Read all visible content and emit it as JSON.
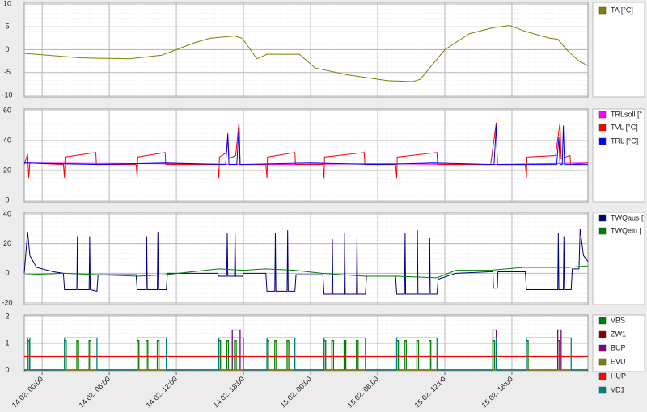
{
  "chart_data": [
    {
      "type": "line",
      "xlim": [
        -1.6,
        48.8
      ],
      "ylim": [
        -10,
        10
      ],
      "yticks": [
        -10,
        -5,
        0,
        5,
        10
      ],
      "grid": true,
      "series": [
        {
          "name": "TA [°C]",
          "color": "#808000",
          "x": [
            -1.6,
            3.5,
            7.8,
            10.7,
            13.6,
            15.0,
            17.2,
            17.9,
            19.2,
            20.1,
            23.0,
            24.4,
            27.3,
            30.9,
            33.1,
            33.8,
            36.0,
            38.2,
            40.3,
            41.8,
            43.2,
            45.4,
            46.1,
            46.9,
            48.0,
            48.8
          ],
          "values": [
            -0.8,
            -1.8,
            -2,
            -1.2,
            1.5,
            2.5,
            3,
            2.5,
            -2,
            -1,
            -1,
            -4,
            -5.5,
            -6.8,
            -7,
            -6.5,
            0,
            3.5,
            4.8,
            5.3,
            4,
            2.5,
            2.3,
            0,
            -2.5,
            -3.5
          ]
        }
      ]
    },
    {
      "type": "line",
      "xlim": [
        -1.6,
        48.8
      ],
      "ylim": [
        0,
        60
      ],
      "yticks": [
        0,
        20,
        40,
        60
      ],
      "grid": true,
      "series": [
        {
          "name": "TRLsoll [°",
          "color": "#ff00ff",
          "x": [
            -1.6,
            10,
            20,
            30,
            40,
            48.8
          ],
          "values": [
            25,
            24.5,
            24,
            24.5,
            24,
            25
          ]
        },
        {
          "name": "TVL [°C]",
          "color": "#ff0000",
          "x": [
            -1.6,
            -1.3,
            -1.2,
            -1.1,
            1.9,
            2.0,
            2.05,
            4.8,
            4.85,
            8.4,
            8.5,
            8.55,
            11.0,
            11.05,
            15.7,
            15.8,
            15.85,
            16.5,
            16.6,
            16.7,
            17.3,
            17.6,
            17.7,
            20.0,
            20.1,
            20.15,
            22.6,
            22.65,
            25.1,
            25.2,
            25.25,
            28.8,
            28.85,
            31.6,
            31.7,
            31.75,
            35.3,
            35.35,
            40.1,
            40.6,
            40.7,
            43.2,
            43.3,
            43.35,
            45.9,
            46.3,
            46.4,
            47.2,
            47.25,
            48.8
          ],
          "values": [
            24,
            31,
            15,
            25,
            24,
            15,
            29,
            32,
            24,
            24,
            15,
            29,
            32,
            24,
            24,
            15,
            29,
            32,
            45,
            28,
            30,
            52,
            24,
            24,
            15,
            29,
            32,
            24,
            24,
            15,
            29,
            32,
            24,
            24,
            15,
            29,
            32,
            24,
            24,
            52,
            24,
            24,
            15,
            29,
            30,
            52,
            28,
            30,
            24,
            25
          ]
        },
        {
          "name": "TRL [°C]",
          "color": "#0000ff",
          "x": [
            -1.6,
            5,
            11,
            16.4,
            16.6,
            16.7,
            17.4,
            17.6,
            17.7,
            24,
            30,
            35,
            40.4,
            40.6,
            40.7,
            46.0,
            46.2,
            46.3,
            46.5,
            46.6,
            46.7,
            48.8
          ],
          "values": [
            25,
            24,
            25,
            24,
            44,
            24,
            24,
            50,
            24,
            25,
            24,
            25,
            24,
            50,
            24,
            24,
            42,
            24,
            24,
            50,
            24,
            24
          ]
        }
      ]
    },
    {
      "type": "line",
      "xlim": [
        -1.6,
        48.8
      ],
      "ylim": [
        -20,
        40
      ],
      "yticks": [
        -20,
        0,
        20,
        40
      ],
      "grid": true,
      "series": [
        {
          "name": "TWQaus [",
          "color": "#000080",
          "x": [
            -1.6,
            -1.3,
            -1.1,
            -0.5,
            1.0,
            1.9,
            2.0,
            3.1,
            3.15,
            3.2,
            4.2,
            4.25,
            4.3,
            4.9,
            5.0,
            8.4,
            8.5,
            9.3,
            9.35,
            9.4,
            10.3,
            10.35,
            10.4,
            11.1,
            11.2,
            15.7,
            15.8,
            16.5,
            16.55,
            16.6,
            17.2,
            17.25,
            17.3,
            17.9,
            18.0,
            20.0,
            20.1,
            20.8,
            20.85,
            20.9,
            21.9,
            21.95,
            22.0,
            22.6,
            22.7,
            25.1,
            25.2,
            25.9,
            25.95,
            26.0,
            27.0,
            27.05,
            27.1,
            28.1,
            28.15,
            28.2,
            28.9,
            29.0,
            31.6,
            31.7,
            32.4,
            32.45,
            32.5,
            33.5,
            33.55,
            33.6,
            34.6,
            34.65,
            34.7,
            35.3,
            35.4,
            37,
            40,
            40.3,
            40.35,
            40.7,
            40.75,
            43.2,
            43.3,
            46.1,
            46.15,
            46.2,
            46.6,
            46.65,
            46.7,
            47.3,
            47.4,
            48.0,
            48.1,
            48.4,
            48.8
          ],
          "values": [
            0,
            28,
            12,
            4,
            1,
            0,
            -11,
            -11,
            25,
            -11,
            -11,
            25,
            -11,
            -12,
            -1,
            -1,
            -11,
            -11,
            25,
            -11,
            -11,
            28,
            -11,
            -11,
            0,
            0,
            -2,
            -2,
            27,
            -2,
            -2,
            27,
            -2,
            -2,
            0,
            0,
            -12,
            -12,
            27,
            -12,
            -12,
            29,
            -12,
            -12,
            -1,
            -1,
            -14,
            -14,
            23,
            -14,
            -14,
            27,
            -14,
            -14,
            25,
            -14,
            -14,
            -2,
            -2,
            -14,
            -14,
            27,
            -14,
            -14,
            29,
            -14,
            -14,
            24,
            -14,
            -14,
            -4,
            0,
            1,
            1,
            -10,
            -10,
            1,
            1,
            -11,
            -11,
            27,
            -11,
            -11,
            25,
            -11,
            -11,
            3,
            3,
            30,
            12,
            8
          ]
        },
        {
          "name": "TWQein [",
          "color": "#008000",
          "x": [
            -1.6,
            2,
            5,
            8.5,
            11,
            15.8,
            18,
            20,
            22.6,
            25,
            28.9,
            31.7,
            35.3,
            37,
            40,
            43,
            47,
            48.8
          ],
          "values": [
            -1,
            0,
            -1,
            -2,
            -1,
            3,
            2,
            3,
            2,
            0,
            -2,
            -2,
            -3,
            2,
            2,
            4,
            4,
            5
          ]
        }
      ]
    },
    {
      "type": "step",
      "xlim": [
        -1.6,
        48.8
      ],
      "ylim": [
        0,
        2
      ],
      "yticks": [
        0,
        1,
        2
      ],
      "grid": true,
      "xticks": [
        {
          "value": 0,
          "label": "14.02. 00:00"
        },
        {
          "value": 6,
          "label": "14.02. 06:00"
        },
        {
          "value": 12,
          "label": "14.02. 12:00"
        },
        {
          "value": 18,
          "label": "14.02. 18:00"
        },
        {
          "value": 24,
          "label": "15.02. 00:00"
        },
        {
          "value": 30,
          "label": "15.02. 06:00"
        },
        {
          "value": 36,
          "label": "15.02. 12:00"
        },
        {
          "value": 42,
          "label": "15.02. 18:00"
        }
      ],
      "series": [
        {
          "name": "VBS",
          "color": "#008000",
          "x": [
            -1.6,
            -1.3,
            -1.15,
            2.0,
            2.15,
            3.1,
            3.25,
            4.2,
            4.35,
            8.5,
            8.65,
            9.3,
            9.45,
            10.3,
            10.45,
            15.8,
            15.95,
            16.5,
            16.65,
            17.2,
            17.35,
            20.1,
            20.25,
            20.8,
            20.95,
            21.9,
            22.05,
            25.2,
            25.35,
            25.9,
            26.05,
            27.0,
            27.15,
            28.1,
            28.25,
            31.7,
            31.85,
            32.4,
            32.55,
            33.5,
            33.65,
            34.6,
            34.75,
            40.3,
            40.45,
            43.3,
            43.45,
            46.1,
            46.25
          ],
          "values": [
            0,
            1.1,
            0,
            1.1,
            0,
            1.1,
            0,
            1.1,
            0,
            1.1,
            0,
            1.1,
            0,
            1.1,
            0,
            1.1,
            0,
            1.1,
            0,
            1.1,
            0,
            1.1,
            0,
            1.1,
            0,
            1.1,
            0,
            1.1,
            0,
            1.1,
            0,
            1.1,
            0,
            1.1,
            0,
            1.1,
            0,
            1.1,
            0,
            1.1,
            0,
            1.1,
            0,
            1.1,
            0,
            1.1,
            0,
            1.1,
            0
          ]
        },
        {
          "name": "ZW1",
          "color": "#800000",
          "x": [
            -1.6
          ],
          "values": [
            0
          ]
        },
        {
          "name": "BUP",
          "color": "#800080",
          "x": [
            -1.6,
            17.0,
            17.7,
            40.3,
            40.6,
            46.1,
            46.4
          ],
          "values": [
            0,
            1.5,
            0,
            1.5,
            0,
            1.5,
            0
          ]
        },
        {
          "name": "EVU",
          "color": "#808000",
          "x": [
            -1.6
          ],
          "values": [
            0
          ]
        },
        {
          "name": "HUP",
          "color": "#ff0000",
          "x": [
            -1.6
          ],
          "values": [
            0.5
          ]
        },
        {
          "name": "VD1",
          "color": "#008080",
          "x": [
            -1.6,
            -1.3,
            -1.1,
            2.0,
            4.9,
            8.5,
            11.1,
            15.8,
            18.0,
            20.1,
            22.6,
            25.2,
            28.9,
            31.7,
            35.3,
            40.3,
            40.6,
            43.3,
            47.3
          ],
          "values": [
            0,
            1.2,
            0,
            1.2,
            0,
            1.2,
            0,
            1.2,
            0,
            1.2,
            0,
            1.2,
            0,
            1.2,
            0,
            1.2,
            0,
            1.2,
            0
          ]
        }
      ]
    }
  ]
}
